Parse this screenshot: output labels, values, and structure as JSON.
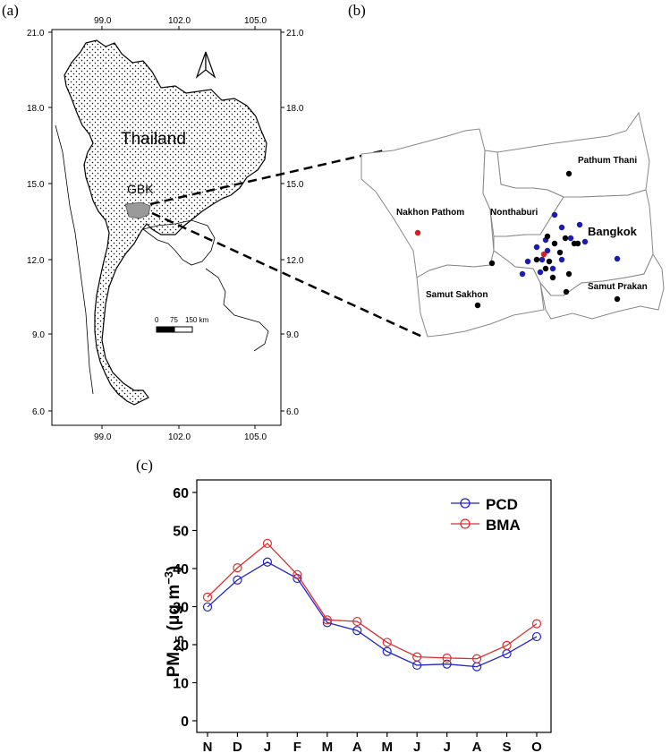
{
  "panels": {
    "a": "(a)",
    "b": "(b)",
    "c": "(c)"
  },
  "map_a": {
    "country_label": "Thailand",
    "region_label": "GBK",
    "lon_ticks": [
      "99.0",
      "102.0",
      "105.0"
    ],
    "lat_ticks": [
      "21.0",
      "18.0",
      "15.0",
      "12.0",
      "9.0",
      "6.0"
    ],
    "scale_labels": [
      "0",
      "75",
      "150 km"
    ],
    "north_arrow": "north-arrow-icon"
  },
  "map_b": {
    "provinces": [
      "Pathum Thani",
      "Nakhon Pathom",
      "Nonthaburi",
      "Bangkok",
      "Samut Sakhon",
      "Samut Prakan"
    ],
    "colors": {
      "black": "#000000",
      "blue": "#1a1ab5",
      "red": "#d62020"
    }
  },
  "chart_data": {
    "type": "line",
    "categories": [
      "N",
      "D",
      "J",
      "F",
      "M",
      "A",
      "M",
      "J",
      "J",
      "A",
      "S",
      "O"
    ],
    "ylabel_main": "PM",
    "ylabel_sub": "2.5",
    "ylabel_unit": " (μg m",
    "ylabel_exp": "−3",
    "ylabel_close": ")",
    "ylim": [
      0,
      60
    ],
    "yticks": [
      0,
      10,
      20,
      30,
      40,
      50,
      60
    ],
    "legend_position": "top-right",
    "series": [
      {
        "name": "PCD",
        "color": "#2323c8",
        "values": [
          29.9,
          37.0,
          41.7,
          37.4,
          25.8,
          23.7,
          18.2,
          14.6,
          14.9,
          14.2,
          17.6,
          22.1
        ]
      },
      {
        "name": "BMA",
        "color": "#d83030",
        "values": [
          32.5,
          40.2,
          46.6,
          38.4,
          26.5,
          26.1,
          20.6,
          16.8,
          16.5,
          16.3,
          19.8,
          25.5
        ]
      }
    ]
  }
}
